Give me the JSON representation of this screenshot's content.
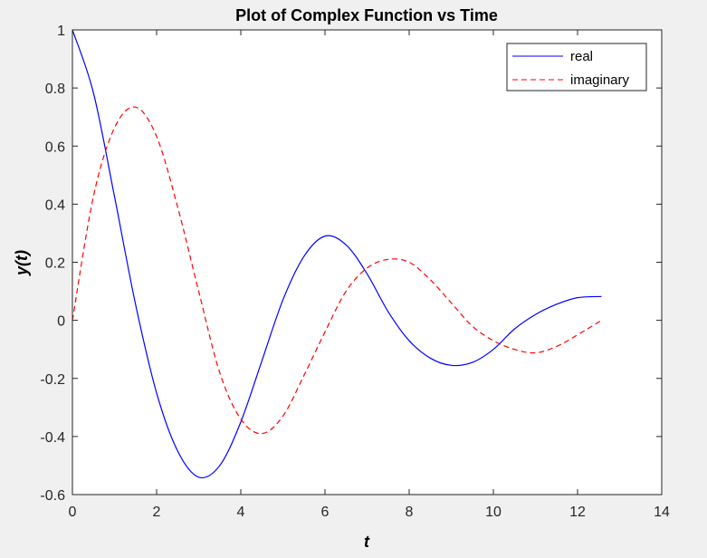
{
  "chart_data": {
    "type": "line",
    "title": "Plot of Complex Function vs Time",
    "xlabel": "t",
    "ylabel": "y(t)",
    "xlim": [
      0,
      14
    ],
    "ylim": [
      -0.6,
      1
    ],
    "xticks": [
      0,
      2,
      4,
      6,
      8,
      10,
      12,
      14
    ],
    "yticks": [
      -0.6,
      -0.4,
      -0.2,
      0,
      0.2,
      0.4,
      0.6,
      0.8,
      1
    ],
    "xtick_labels": [
      "0",
      "2",
      "4",
      "6",
      "8",
      "10",
      "12",
      "14"
    ],
    "ytick_labels": [
      "-0.6",
      "-0.4",
      "-0.2",
      "0",
      "0.2",
      "0.4",
      "0.6",
      "0.8",
      "1"
    ],
    "grid": false,
    "legend_position": "top-right",
    "x": [
      0,
      0.5,
      1.0,
      1.5,
      2.0,
      2.5,
      3.0,
      3.5,
      4.0,
      4.5,
      5.0,
      5.5,
      6.0,
      6.5,
      7.0,
      7.5,
      8.0,
      8.5,
      9.0,
      9.5,
      10.0,
      10.5,
      11.0,
      11.5,
      12.0,
      12.57
    ],
    "series": [
      {
        "name": "real",
        "color": "#0000ff",
        "style": "solid",
        "values": [
          1.0,
          0.783,
          0.426,
          0.055,
          -0.25,
          -0.45,
          -0.54,
          -0.5,
          -0.35,
          -0.14,
          0.07,
          0.22,
          0.29,
          0.26,
          0.16,
          0.03,
          -0.07,
          -0.13,
          -0.155,
          -0.145,
          -0.1,
          -0.03,
          0.02,
          0.055,
          0.078,
          0.082
        ]
      },
      {
        "name": "imaginary",
        "color": "#ff0000",
        "style": "dashed",
        "values": [
          0.0,
          0.427,
          0.663,
          0.734,
          0.633,
          0.39,
          0.1,
          -0.18,
          -0.34,
          -0.39,
          -0.33,
          -0.19,
          -0.04,
          0.1,
          0.18,
          0.21,
          0.2,
          0.14,
          0.06,
          -0.02,
          -0.07,
          -0.1,
          -0.112,
          -0.09,
          -0.05,
          0.0
        ]
      }
    ]
  }
}
